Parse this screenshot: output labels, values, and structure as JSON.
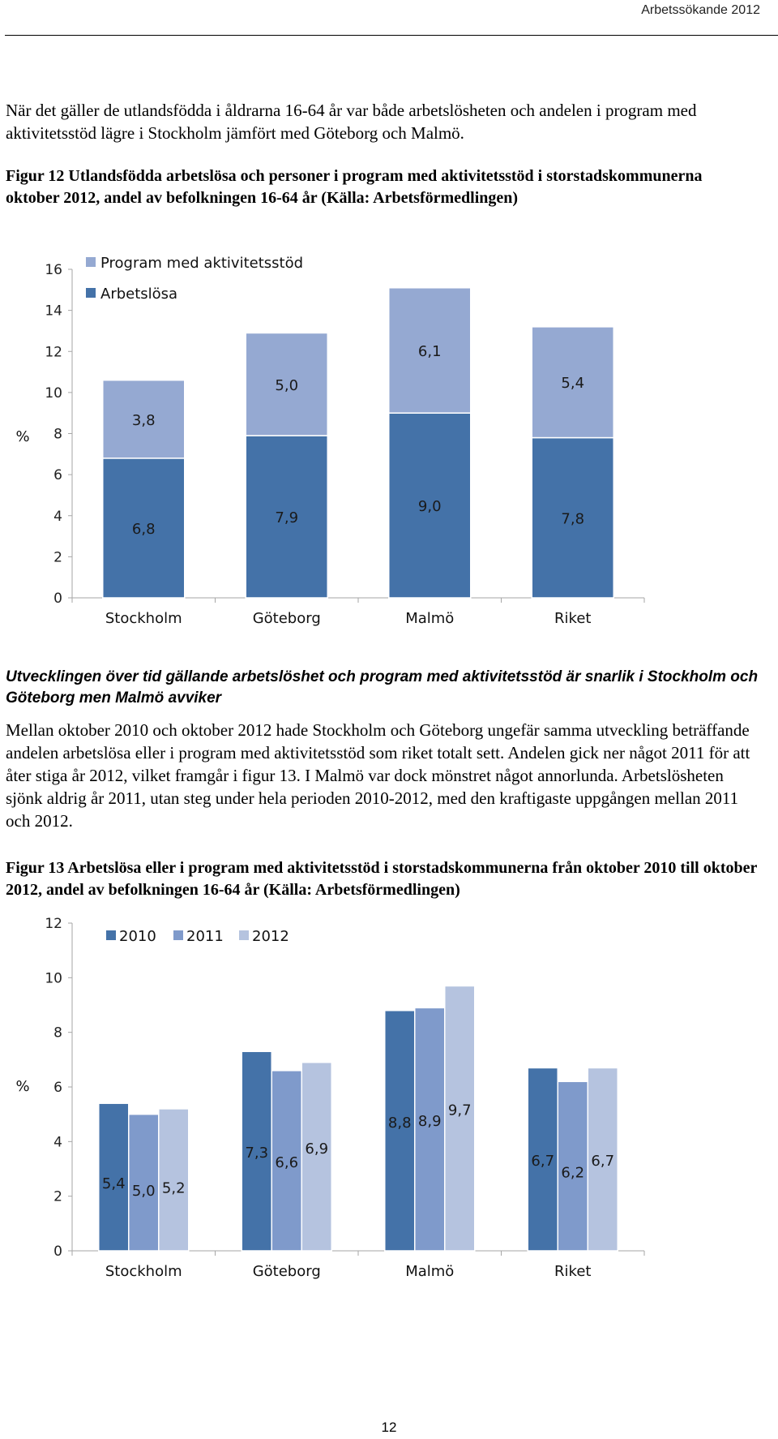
{
  "header": {
    "running_title": "Arbetssökande 2012"
  },
  "paragraph_1": "När det gäller de utlandsfödda i åldrarna 16-64 år var både arbetslösheten och andelen i program med aktivitetsstöd lägre i Stockholm jämfört med Göteborg och Malmö.",
  "figure_12": {
    "caption": "Figur 12 Utlandsfödda arbetslösa och personer i program med aktivitetsstöd i storstadskommunerna oktober 2012, andel av befolkningen 16-64 år (Källa: Arbetsförmedlingen)"
  },
  "subheading": "Utvecklingen över tid gällande arbetslöshet och program med aktivitetsstöd är snarlik i Stockholm och Göteborg men Malmö avviker",
  "paragraph_2": "Mellan oktober 2010 och oktober 2012 hade Stockholm och Göteborg ungefär samma utveckling beträffande andelen arbetslösa eller i program med aktivitetsstöd som riket totalt sett. Andelen gick ner något 2011 för att åter stiga år 2012, vilket framgår i figur 13. I Malmö var dock mönstret något annorlunda. Arbetslösheten sjönk aldrig år 2011, utan steg under hela perioden 2010-2012, med den kraftigaste uppgången mellan 2011 och 2012.",
  "figure_13": {
    "caption": "Figur 13 Arbetslösa eller i program med aktivitetsstöd i storstadskommunerna från oktober 2010 till oktober 2012, andel av befolkningen 16-64 år (Källa: Arbetsförmedlingen)"
  },
  "page_number": "12",
  "chart_data": [
    {
      "type": "bar",
      "stacked": true,
      "categories": [
        "Stockholm",
        "Göteborg",
        "Malmö",
        "Riket"
      ],
      "series": [
        {
          "name": "Arbetslösa",
          "values": [
            6.8,
            7.9,
            9.0,
            7.8
          ],
          "labels": [
            "6,8",
            "7,9",
            "9,0",
            "7,8"
          ],
          "color": "#4472a8"
        },
        {
          "name": "Program med aktivitetsstöd",
          "values": [
            3.8,
            5.0,
            6.1,
            5.4
          ],
          "labels": [
            "3,8",
            "5,0",
            "6,1",
            "5,4"
          ],
          "color": "#95a9d2"
        }
      ],
      "ylabel": "%",
      "ylim": [
        0,
        16
      ],
      "yticks": [
        0,
        2,
        4,
        6,
        8,
        10,
        12,
        14,
        16
      ],
      "ytick_labels": [
        "0",
        "2",
        "4",
        "6",
        "8",
        "10",
        "12",
        "14",
        "16"
      ],
      "grid": false,
      "legend_position": "top-left"
    },
    {
      "type": "bar",
      "stacked": false,
      "categories": [
        "Stockholm",
        "Göteborg",
        "Malmö",
        "Riket"
      ],
      "series": [
        {
          "name": "2010",
          "values": [
            5.4,
            7.3,
            8.8,
            6.7
          ],
          "labels": [
            "5,4",
            "7,3",
            "8,8",
            "6,7"
          ],
          "color": "#4472a8"
        },
        {
          "name": "2011",
          "values": [
            5.0,
            6.6,
            8.9,
            6.2
          ],
          "labels": [
            "5,0",
            "6,6",
            "8,9",
            "6,2"
          ],
          "color": "#7f9acb"
        },
        {
          "name": "2012",
          "values": [
            5.2,
            6.9,
            9.7,
            6.7
          ],
          "labels": [
            "5,2",
            "6,9",
            "9,7",
            "6,7"
          ],
          "color": "#b5c3df"
        }
      ],
      "ylabel": "%",
      "ylim": [
        0,
        12
      ],
      "yticks": [
        0,
        2,
        4,
        6,
        8,
        10,
        12
      ],
      "ytick_labels": [
        "0",
        "2",
        "4",
        "6",
        "8",
        "10",
        "12"
      ],
      "grid": false,
      "legend_position": "top"
    }
  ]
}
